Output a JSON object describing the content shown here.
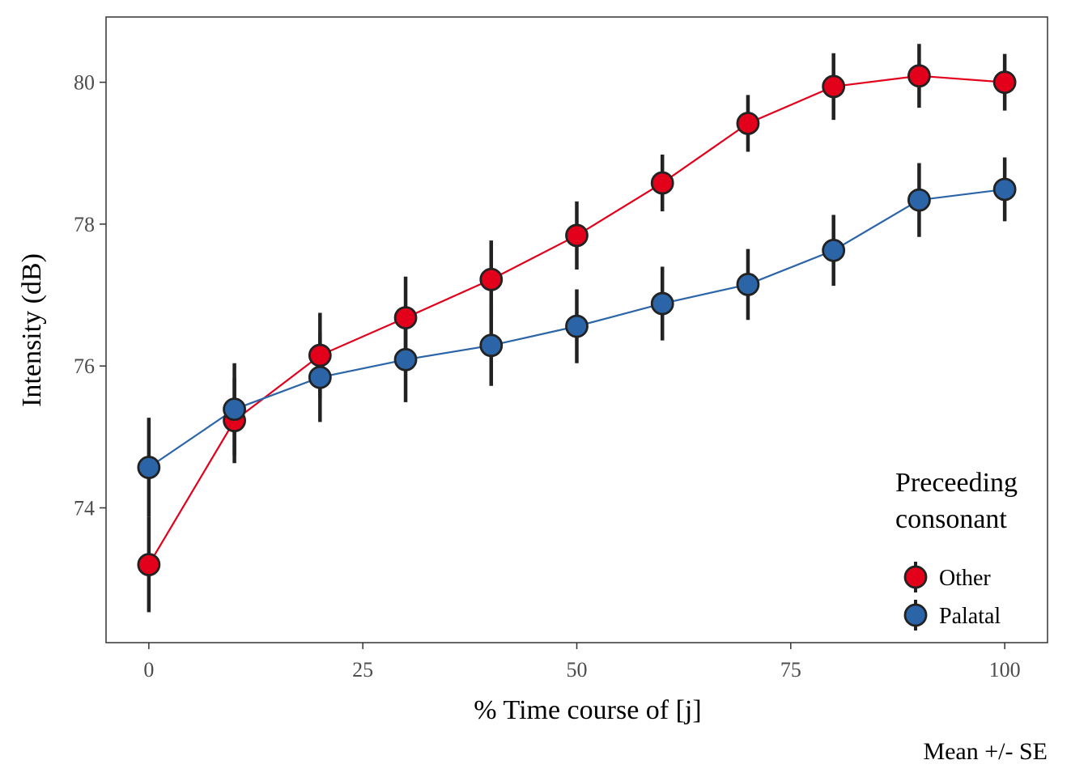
{
  "chart_data": {
    "type": "line",
    "xlabel": "% Time course of [j]",
    "ylabel": "Intensity (dB)",
    "caption": "Mean +/- SE",
    "xlim": [
      -5,
      105
    ],
    "ylim": [
      72.1,
      80.92
    ],
    "x_ticks": [
      0,
      25,
      50,
      75,
      100
    ],
    "y_ticks": [
      74,
      76,
      78,
      80
    ],
    "grid": false,
    "legend": {
      "title_line1": "Preceeding",
      "title_line2": "consonant",
      "placement": "bottom-right"
    },
    "x": [
      0,
      10,
      20,
      30,
      40,
      50,
      60,
      70,
      80,
      90,
      100
    ],
    "series": [
      {
        "name": "Other",
        "color": "#e3001b",
        "values": [
          73.2,
          75.23,
          76.15,
          76.68,
          77.22,
          77.84,
          78.58,
          79.42,
          79.94,
          80.09,
          80.0
        ],
        "errors": [
          0.67,
          0.6,
          0.6,
          0.58,
          0.55,
          0.48,
          0.4,
          0.4,
          0.47,
          0.45,
          0.4
        ]
      },
      {
        "name": "Palatal",
        "color": "#2b65a8",
        "values": [
          74.57,
          75.39,
          75.84,
          76.09,
          76.29,
          76.56,
          76.88,
          77.15,
          77.63,
          78.34,
          78.49
        ],
        "errors": [
          0.7,
          0.65,
          0.63,
          0.6,
          0.57,
          0.52,
          0.52,
          0.5,
          0.5,
          0.52,
          0.45
        ]
      }
    ]
  }
}
